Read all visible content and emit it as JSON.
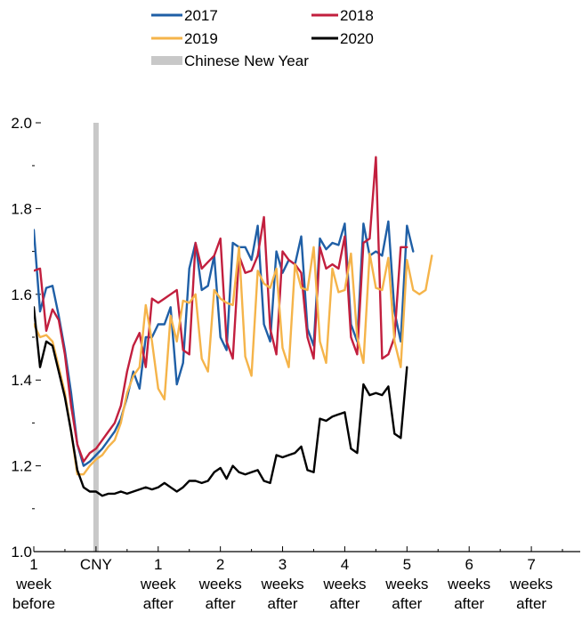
{
  "chart_data": {
    "type": "line",
    "title": "",
    "xlabel": "",
    "ylabel": "",
    "ylim": [
      1.0,
      2.0
    ],
    "y_ticks": [
      {
        "value": 1.0,
        "label": "1.0"
      },
      {
        "value": 1.2,
        "label": "1.2"
      },
      {
        "value": 1.4,
        "label": "1.4"
      },
      {
        "value": 1.6,
        "label": "1.6"
      },
      {
        "value": 1.8,
        "label": "1.8"
      },
      {
        "value": 2.0,
        "label": "2.0"
      }
    ],
    "y_minor_ticks": [
      1.1,
      1.3,
      1.5,
      1.7,
      1.9
    ],
    "x_ticks": [
      {
        "day": -7,
        "lines": [
          "1",
          "week",
          "before"
        ]
      },
      {
        "day": 0,
        "lines": [
          "CNY"
        ]
      },
      {
        "day": 7,
        "lines": [
          "1",
          "week",
          "after"
        ]
      },
      {
        "day": 14,
        "lines": [
          "2",
          "weeks",
          "after"
        ]
      },
      {
        "day": 21,
        "lines": [
          "3",
          "weeks",
          "after"
        ]
      },
      {
        "day": 28,
        "lines": [
          "4",
          "weeks",
          "after"
        ]
      },
      {
        "day": 35,
        "lines": [
          "5",
          "weeks",
          "after"
        ]
      },
      {
        "day": 42,
        "lines": [
          "6",
          "weeks",
          "after"
        ]
      },
      {
        "day": 49,
        "lines": [
          "7",
          "weeks",
          "after"
        ]
      }
    ],
    "x_range": [
      -7,
      54.5
    ],
    "cny_marker": {
      "day": 0,
      "label": "Chinese New Year",
      "color": "#c8c8c8"
    },
    "legend_position": "top",
    "series": [
      {
        "name": "2017",
        "color": "#1f5fa6",
        "points": [
          [
            -7,
            1.75
          ],
          [
            -6.3,
            1.56
          ],
          [
            -5.6,
            1.615
          ],
          [
            -4.9,
            1.62
          ],
          [
            -4.2,
            1.55
          ],
          [
            -3.5,
            1.47
          ],
          [
            -2.8,
            1.37
          ],
          [
            -2.1,
            1.25
          ],
          [
            -1.4,
            1.2
          ],
          [
            -0.7,
            1.21
          ],
          [
            0,
            1.225
          ],
          [
            0.7,
            1.24
          ],
          [
            1.4,
            1.26
          ],
          [
            2.1,
            1.28
          ],
          [
            2.8,
            1.31
          ],
          [
            3.5,
            1.36
          ],
          [
            4.2,
            1.42
          ],
          [
            4.9,
            1.38
          ],
          [
            5.6,
            1.5
          ],
          [
            6.3,
            1.5
          ],
          [
            7,
            1.53
          ],
          [
            7.7,
            1.53
          ],
          [
            8.4,
            1.57
          ],
          [
            9.1,
            1.39
          ],
          [
            9.8,
            1.44
          ],
          [
            10.5,
            1.66
          ],
          [
            11.2,
            1.72
          ],
          [
            11.9,
            1.61
          ],
          [
            12.6,
            1.62
          ],
          [
            13.3,
            1.69
          ],
          [
            14,
            1.5
          ],
          [
            14.7,
            1.47
          ],
          [
            15.4,
            1.72
          ],
          [
            16.1,
            1.71
          ],
          [
            16.8,
            1.71
          ],
          [
            17.5,
            1.68
          ],
          [
            18.2,
            1.76
          ],
          [
            18.9,
            1.53
          ],
          [
            19.6,
            1.49
          ],
          [
            20.3,
            1.7
          ],
          [
            21,
            1.65
          ],
          [
            21.7,
            1.68
          ],
          [
            22.4,
            1.67
          ],
          [
            23.1,
            1.735
          ],
          [
            23.8,
            1.52
          ],
          [
            24.5,
            1.48
          ],
          [
            25.2,
            1.73
          ],
          [
            25.9,
            1.705
          ],
          [
            26.6,
            1.72
          ],
          [
            27.3,
            1.715
          ],
          [
            28,
            1.765
          ],
          [
            28.7,
            1.53
          ],
          [
            29.4,
            1.49
          ],
          [
            30.1,
            1.765
          ],
          [
            30.8,
            1.69
          ],
          [
            31.5,
            1.7
          ],
          [
            32.2,
            1.69
          ],
          [
            32.9,
            1.77
          ],
          [
            33.6,
            1.56
          ],
          [
            34.3,
            1.49
          ],
          [
            35,
            1.76
          ],
          [
            35.7,
            1.7
          ]
        ]
      },
      {
        "name": "2018",
        "color": "#c21f3e",
        "points": [
          [
            -7,
            1.655
          ],
          [
            -6.3,
            1.66
          ],
          [
            -5.6,
            1.515
          ],
          [
            -4.9,
            1.565
          ],
          [
            -4.2,
            1.54
          ],
          [
            -3.5,
            1.46
          ],
          [
            -2.8,
            1.34
          ],
          [
            -2.1,
            1.25
          ],
          [
            -1.4,
            1.21
          ],
          [
            -0.7,
            1.23
          ],
          [
            0,
            1.24
          ],
          [
            0.7,
            1.26
          ],
          [
            1.4,
            1.28
          ],
          [
            2.1,
            1.3
          ],
          [
            2.8,
            1.34
          ],
          [
            3.5,
            1.42
          ],
          [
            4.2,
            1.48
          ],
          [
            4.9,
            1.51
          ],
          [
            5.6,
            1.43
          ],
          [
            6.3,
            1.59
          ],
          [
            7,
            1.58
          ],
          [
            7.7,
            1.59
          ],
          [
            8.4,
            1.6
          ],
          [
            9.1,
            1.61
          ],
          [
            9.8,
            1.47
          ],
          [
            10.5,
            1.46
          ],
          [
            11.2,
            1.72
          ],
          [
            11.9,
            1.66
          ],
          [
            12.6,
            1.675
          ],
          [
            13.3,
            1.69
          ],
          [
            14,
            1.73
          ],
          [
            14.7,
            1.49
          ],
          [
            15.4,
            1.45
          ],
          [
            16.1,
            1.69
          ],
          [
            16.8,
            1.65
          ],
          [
            17.5,
            1.655
          ],
          [
            18.2,
            1.69
          ],
          [
            18.9,
            1.78
          ],
          [
            19.6,
            1.52
          ],
          [
            20.3,
            1.46
          ],
          [
            21,
            1.7
          ],
          [
            21.7,
            1.68
          ],
          [
            22.4,
            1.67
          ],
          [
            23.1,
            1.65
          ],
          [
            23.8,
            1.5
          ],
          [
            24.5,
            1.45
          ],
          [
            25.2,
            1.71
          ],
          [
            25.9,
            1.66
          ],
          [
            26.6,
            1.67
          ],
          [
            27.3,
            1.66
          ],
          [
            28,
            1.735
          ],
          [
            28.7,
            1.5
          ],
          [
            29.4,
            1.46
          ],
          [
            30.1,
            1.72
          ],
          [
            30.8,
            1.73
          ],
          [
            31.5,
            1.92
          ],
          [
            32.2,
            1.45
          ],
          [
            32.9,
            1.46
          ],
          [
            33.6,
            1.5
          ],
          [
            34.3,
            1.71
          ],
          [
            35,
            1.71
          ]
        ]
      },
      {
        "name": "2019",
        "color": "#f5b44a",
        "points": [
          [
            -7,
            1.53
          ],
          [
            -6.3,
            1.5
          ],
          [
            -5.6,
            1.505
          ],
          [
            -4.9,
            1.49
          ],
          [
            -4.2,
            1.43
          ],
          [
            -3.5,
            1.37
          ],
          [
            -2.8,
            1.28
          ],
          [
            -2.1,
            1.18
          ],
          [
            -1.4,
            1.18
          ],
          [
            -0.7,
            1.2
          ],
          [
            0,
            1.215
          ],
          [
            0.7,
            1.225
          ],
          [
            1.4,
            1.245
          ],
          [
            2.1,
            1.26
          ],
          [
            2.8,
            1.3
          ],
          [
            3.5,
            1.37
          ],
          [
            4.2,
            1.41
          ],
          [
            4.9,
            1.43
          ],
          [
            5.6,
            1.575
          ],
          [
            6.3,
            1.49
          ],
          [
            7,
            1.38
          ],
          [
            7.7,
            1.355
          ],
          [
            8.4,
            1.55
          ],
          [
            9.1,
            1.49
          ],
          [
            9.8,
            1.585
          ],
          [
            10.5,
            1.58
          ],
          [
            11.2,
            1.6
          ],
          [
            11.9,
            1.45
          ],
          [
            12.6,
            1.42
          ],
          [
            13.3,
            1.61
          ],
          [
            14,
            1.59
          ],
          [
            14.7,
            1.58
          ],
          [
            15.4,
            1.575
          ],
          [
            16.1,
            1.71
          ],
          [
            16.8,
            1.455
          ],
          [
            17.5,
            1.41
          ],
          [
            18.2,
            1.655
          ],
          [
            18.9,
            1.625
          ],
          [
            19.6,
            1.615
          ],
          [
            20.3,
            1.66
          ],
          [
            21,
            1.475
          ],
          [
            21.7,
            1.43
          ],
          [
            22.4,
            1.67
          ],
          [
            23.1,
            1.615
          ],
          [
            23.8,
            1.61
          ],
          [
            24.5,
            1.71
          ],
          [
            25.2,
            1.49
          ],
          [
            25.9,
            1.44
          ],
          [
            26.6,
            1.66
          ],
          [
            27.3,
            1.605
          ],
          [
            28,
            1.61
          ],
          [
            28.7,
            1.695
          ],
          [
            29.4,
            1.5
          ],
          [
            30.1,
            1.44
          ],
          [
            30.8,
            1.695
          ],
          [
            31.5,
            1.615
          ],
          [
            32.2,
            1.61
          ],
          [
            32.9,
            1.685
          ],
          [
            33.6,
            1.49
          ],
          [
            34.3,
            1.43
          ],
          [
            35,
            1.68
          ],
          [
            35.7,
            1.61
          ],
          [
            36.4,
            1.6
          ],
          [
            37.1,
            1.61
          ],
          [
            37.8,
            1.69
          ]
        ]
      },
      {
        "name": "2020",
        "color": "#000000",
        "points": [
          [
            -7,
            1.57
          ],
          [
            -6.3,
            1.43
          ],
          [
            -5.6,
            1.49
          ],
          [
            -4.9,
            1.48
          ],
          [
            -4.2,
            1.42
          ],
          [
            -3.5,
            1.36
          ],
          [
            -2.8,
            1.28
          ],
          [
            -2.1,
            1.19
          ],
          [
            -1.4,
            1.15
          ],
          [
            -0.7,
            1.14
          ],
          [
            0,
            1.14
          ],
          [
            0.7,
            1.13
          ],
          [
            1.4,
            1.135
          ],
          [
            2.1,
            1.135
          ],
          [
            2.8,
            1.14
          ],
          [
            3.5,
            1.135
          ],
          [
            4.2,
            1.14
          ],
          [
            4.9,
            1.145
          ],
          [
            5.6,
            1.15
          ],
          [
            6.3,
            1.145
          ],
          [
            7,
            1.15
          ],
          [
            7.7,
            1.16
          ],
          [
            8.4,
            1.15
          ],
          [
            9.1,
            1.14
          ],
          [
            9.8,
            1.15
          ],
          [
            10.5,
            1.165
          ],
          [
            11.2,
            1.165
          ],
          [
            11.9,
            1.16
          ],
          [
            12.6,
            1.165
          ],
          [
            13.3,
            1.185
          ],
          [
            14,
            1.195
          ],
          [
            14.7,
            1.17
          ],
          [
            15.4,
            1.2
          ],
          [
            16.1,
            1.185
          ],
          [
            16.8,
            1.18
          ],
          [
            17.5,
            1.185
          ],
          [
            18.2,
            1.19
          ],
          [
            18.9,
            1.165
          ],
          [
            19.6,
            1.16
          ],
          [
            20.3,
            1.225
          ],
          [
            21,
            1.22
          ],
          [
            21.7,
            1.225
          ],
          [
            22.4,
            1.23
          ],
          [
            23.1,
            1.245
          ],
          [
            23.8,
            1.19
          ],
          [
            24.5,
            1.185
          ],
          [
            25.2,
            1.31
          ],
          [
            25.9,
            1.305
          ],
          [
            26.6,
            1.315
          ],
          [
            27.3,
            1.32
          ],
          [
            28,
            1.325
          ],
          [
            28.7,
            1.24
          ],
          [
            29.4,
            1.23
          ],
          [
            30.1,
            1.39
          ],
          [
            30.8,
            1.365
          ],
          [
            31.5,
            1.37
          ],
          [
            32.2,
            1.365
          ],
          [
            32.9,
            1.385
          ],
          [
            33.6,
            1.275
          ],
          [
            34.3,
            1.265
          ],
          [
            35,
            1.43
          ]
        ]
      }
    ]
  }
}
